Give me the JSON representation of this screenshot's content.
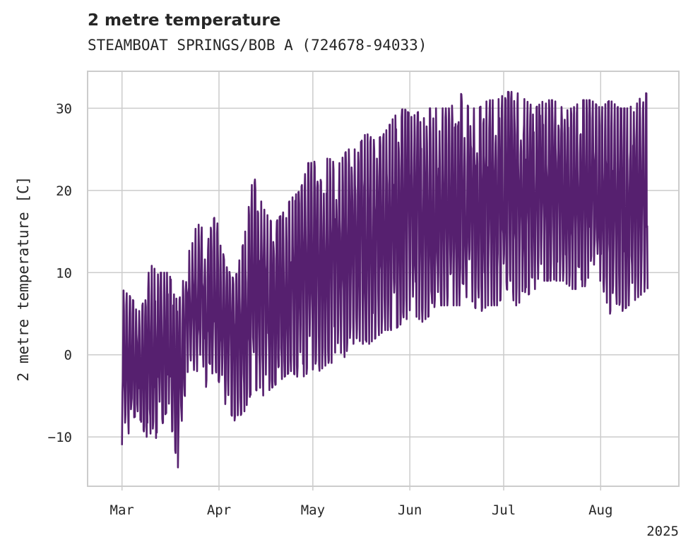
{
  "chart_data": {
    "type": "line",
    "title": "2 metre temperature",
    "subtitle": "STEAMBOAT SPRINGS/BOB A (724678-94033)",
    "ylabel": "2 metre temperature [C]",
    "xlabel": "",
    "x_tick_labels": [
      "Mar",
      "Apr",
      "May",
      "Jun",
      "Jul",
      "Aug"
    ],
    "x_year_label": "2025",
    "y_ticks": [
      -10,
      0,
      10,
      20,
      30
    ],
    "ylim": [
      -16,
      34.5
    ],
    "xlim": [
      "2025-02-18",
      "2025-08-26"
    ],
    "grid": true,
    "line_color": "#56206f",
    "series": [
      {
        "name": "",
        "x": [
          "2025-03-01",
          "2025-03-04",
          "2025-03-07",
          "2025-03-10",
          "2025-03-13",
          "2025-03-16",
          "2025-03-19",
          "2025-03-22",
          "2025-03-25",
          "2025-03-28",
          "2025-03-31",
          "2025-04-03",
          "2025-04-06",
          "2025-04-09",
          "2025-04-12",
          "2025-04-15",
          "2025-04-18",
          "2025-04-21",
          "2025-04-24",
          "2025-04-27",
          "2025-04-30",
          "2025-05-03",
          "2025-05-06",
          "2025-05-09",
          "2025-05-12",
          "2025-05-15",
          "2025-05-18",
          "2025-05-21",
          "2025-05-24",
          "2025-05-27",
          "2025-05-30",
          "2025-06-02",
          "2025-06-05",
          "2025-06-08",
          "2025-06-11",
          "2025-06-14",
          "2025-06-17",
          "2025-06-20",
          "2025-06-23",
          "2025-06-26",
          "2025-06-29",
          "2025-07-02",
          "2025-07-05",
          "2025-07-08",
          "2025-07-11",
          "2025-07-14",
          "2025-07-17",
          "2025-07-20",
          "2025-07-23",
          "2025-07-26",
          "2025-07-29",
          "2025-08-01",
          "2025-08-04",
          "2025-08-07",
          "2025-08-10",
          "2025-08-13",
          "2025-08-16"
        ],
        "min": [
          -11,
          -9,
          -8,
          -12,
          -9,
          -7,
          -14,
          -3,
          -2,
          -4,
          -2,
          -6,
          -8,
          -7,
          -4,
          -5,
          -4,
          -3,
          -2,
          -3,
          -2,
          -2,
          -1,
          -1,
          0,
          2,
          1,
          2,
          3,
          3,
          4,
          5,
          4,
          5,
          6,
          6,
          6,
          7,
          5,
          6,
          6,
          8,
          6,
          7,
          8,
          9,
          9,
          9,
          8,
          8,
          9,
          9,
          5,
          5,
          6,
          7,
          8
        ],
        "max": [
          8,
          7,
          5,
          11,
          10,
          10,
          6,
          12,
          16,
          15,
          17,
          11,
          9,
          14,
          22,
          18,
          16,
          17,
          19,
          20,
          24,
          23,
          24,
          23,
          25,
          25,
          27,
          26,
          27,
          29,
          30,
          29,
          30,
          30,
          30,
          30,
          32,
          30,
          30,
          31,
          31,
          32,
          32,
          31,
          30,
          31,
          31,
          30,
          30,
          31,
          31,
          30,
          31,
          30,
          30,
          31,
          32
        ]
      }
    ]
  }
}
